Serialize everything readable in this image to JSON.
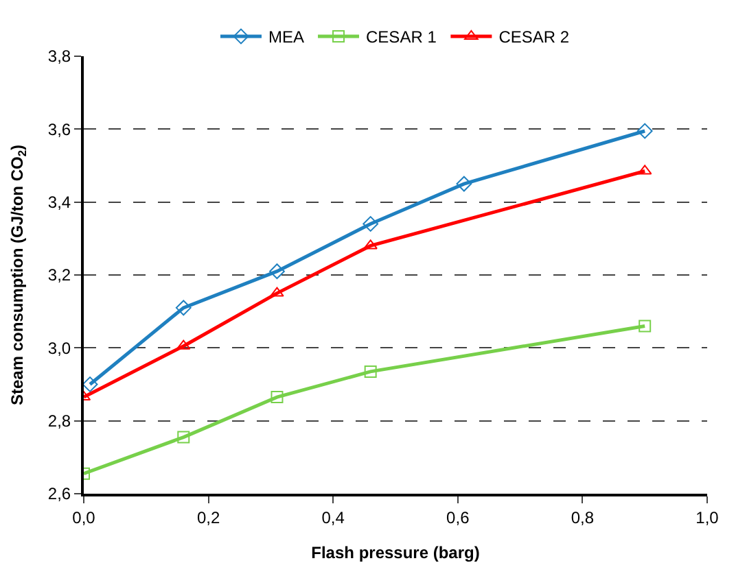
{
  "chart_data": {
    "type": "line",
    "xlabel": "Flash pressure (barg)",
    "ylabel": "Steam consumption (GJ/ton CO$_{2}$)",
    "xlim": [
      0,
      1
    ],
    "xticks": [
      {
        "value": 0,
        "label": "0,0"
      },
      {
        "value": 0.2,
        "label": "0,2"
      },
      {
        "value": 0.4,
        "label": "0,4"
      },
      {
        "value": 0.6,
        "label": "0,6"
      },
      {
        "value": 0.8,
        "label": "0,8"
      },
      {
        "value": 1,
        "label": "1,0"
      }
    ],
    "ylim": [
      2.6,
      3.8
    ],
    "yticks": [
      {
        "value": 2.6,
        "label": "2,6"
      },
      {
        "value": 2.8,
        "label": "2,8"
      },
      {
        "value": 3.0,
        "label": "3,0"
      },
      {
        "value": 3.2,
        "label": "3,2"
      },
      {
        "value": 3.4,
        "label": "3,4"
      },
      {
        "value": 3.6,
        "label": "3,6"
      },
      {
        "value": 3.8,
        "label": "3,8"
      }
    ],
    "grid": "y",
    "legend": "top",
    "line_style": "solid",
    "series": [
      {
        "name": "MEA",
        "color": "#1f80c0",
        "marker": "diamond",
        "x": [
          0.01,
          0.16,
          0.31,
          0.46,
          0.61,
          0.9
        ],
        "values": [
          2.9,
          3.11,
          3.21,
          3.34,
          3.45,
          3.595
        ]
      },
      {
        "name": "CESAR 1",
        "color": "#77d04a",
        "marker": "square",
        "x": [
          0,
          0.16,
          0.31,
          0.46,
          0.9
        ],
        "values": [
          2.655,
          2.755,
          2.865,
          2.935,
          3.06
        ]
      },
      {
        "name": "CESAR 2",
        "color": "#ff0000",
        "marker": "triangle",
        "x": [
          0,
          0.16,
          0.31,
          0.46,
          0.9
        ],
        "values": [
          2.865,
          3.005,
          3.15,
          3.28,
          3.485
        ]
      }
    ]
  }
}
